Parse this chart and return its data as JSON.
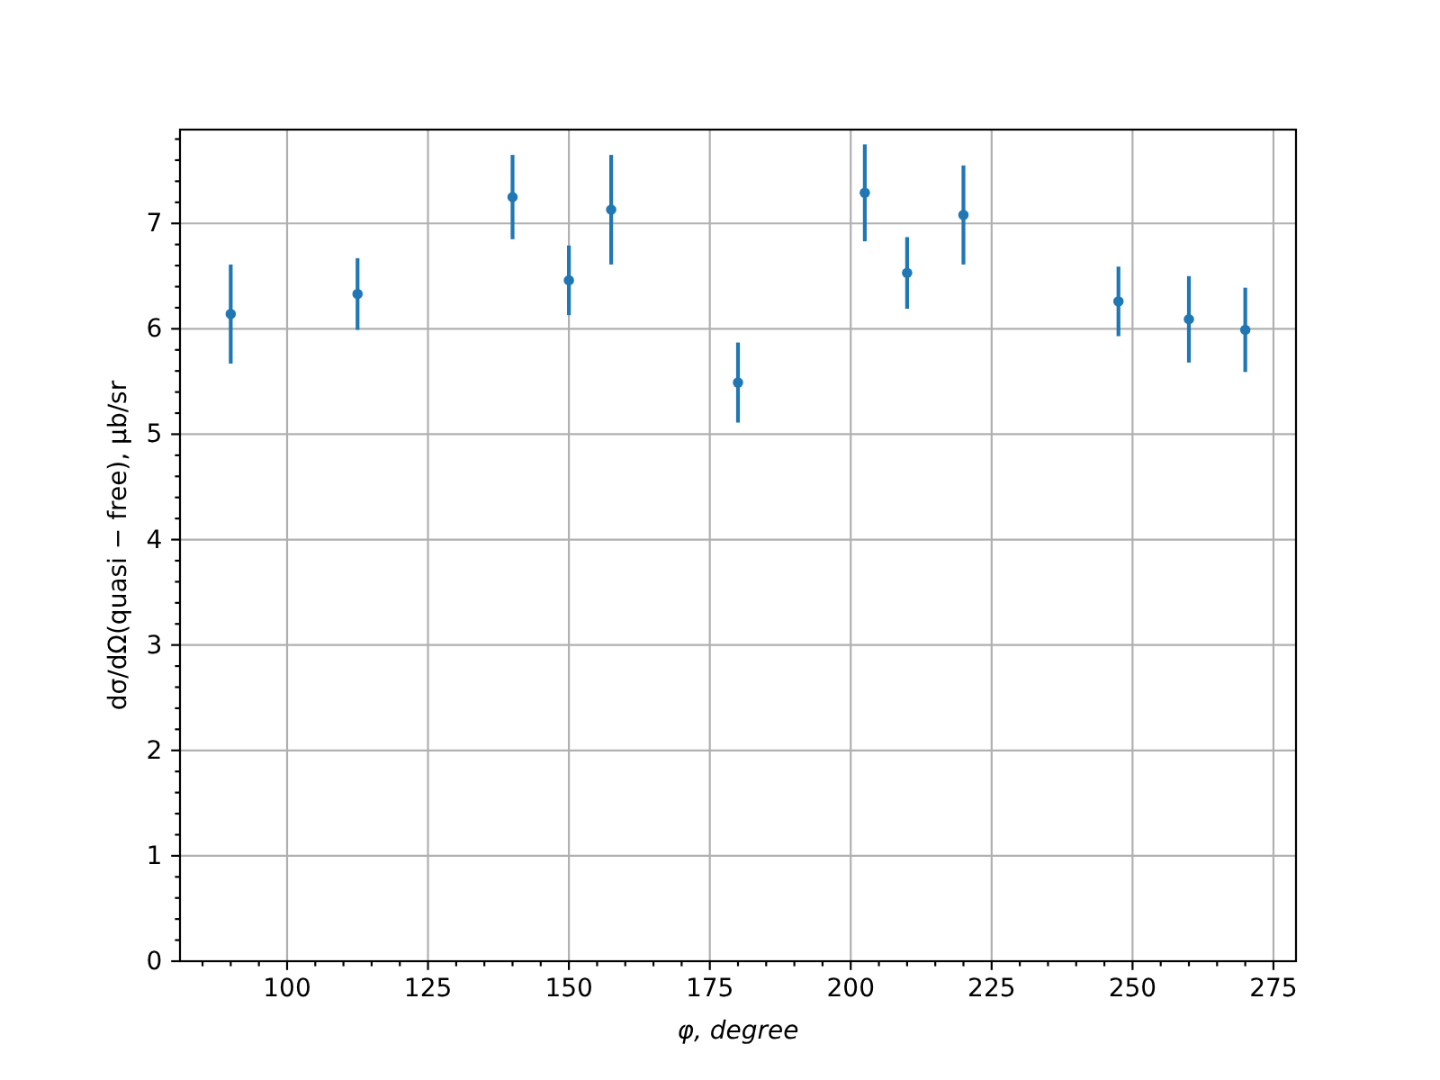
{
  "chart_data": {
    "type": "scatter",
    "xlabel": "φ, degree",
    "ylabel": "dσ/dΩ(quasi − free), μb/sr",
    "x": [
      90,
      112.5,
      140,
      150,
      157.5,
      180,
      202.5,
      210,
      220,
      247.5,
      260,
      270
    ],
    "values": [
      6.14,
      6.33,
      7.25,
      6.46,
      7.13,
      5.49,
      7.29,
      6.53,
      7.08,
      6.26,
      6.09,
      5.99
    ],
    "errors": [
      0.47,
      0.34,
      0.4,
      0.33,
      0.52,
      0.38,
      0.46,
      0.34,
      0.47,
      0.33,
      0.41,
      0.4
    ],
    "color": "#1f77b4",
    "marker": "circle",
    "grid": true,
    "xlim": [
      81,
      279
    ],
    "ylim": [
      0,
      7.89
    ],
    "xticks": [
      {
        "value": 85,
        "label": null
      },
      {
        "value": 90,
        "label": null
      },
      {
        "value": 95,
        "label": null
      },
      100,
      {
        "value": 105,
        "label": null
      },
      {
        "value": 110,
        "label": null
      },
      {
        "value": 115,
        "label": null
      },
      {
        "value": 120,
        "label": null
      },
      125,
      {
        "value": 130,
        "label": null
      },
      {
        "value": 135,
        "label": null
      },
      {
        "value": 140,
        "label": null
      },
      {
        "value": 145,
        "label": null
      },
      150,
      {
        "value": 155,
        "label": null
      },
      {
        "value": 160,
        "label": null
      },
      {
        "value": 165,
        "label": null
      },
      {
        "value": 170,
        "label": null
      },
      175,
      {
        "value": 180,
        "label": null
      },
      {
        "value": 185,
        "label": null
      },
      {
        "value": 190,
        "label": null
      },
      {
        "value": 195,
        "label": null
      },
      200,
      {
        "value": 205,
        "label": null
      },
      {
        "value": 210,
        "label": null
      },
      {
        "value": 215,
        "label": null
      },
      {
        "value": 220,
        "label": null
      },
      225,
      {
        "value": 230,
        "label": null
      },
      {
        "value": 235,
        "label": null
      },
      {
        "value": 240,
        "label": null
      },
      {
        "value": 245,
        "label": null
      },
      250,
      {
        "value": 255,
        "label": null
      },
      {
        "value": 260,
        "label": null
      },
      {
        "value": 265,
        "label": null
      },
      {
        "value": 270,
        "label": null
      },
      275
    ],
    "yticks": [
      0,
      {
        "value": 0.2,
        "label": null
      },
      {
        "value": 0.4,
        "label": null
      },
      {
        "value": 0.6,
        "label": null
      },
      {
        "value": 0.8,
        "label": null
      },
      1,
      {
        "value": 1.2,
        "label": null
      },
      {
        "value": 1.4,
        "label": null
      },
      {
        "value": 1.6,
        "label": null
      },
      {
        "value": 1.8,
        "label": null
      },
      2,
      {
        "value": 2.2,
        "label": null
      },
      {
        "value": 2.4,
        "label": null
      },
      {
        "value": 2.6,
        "label": null
      },
      {
        "value": 2.8,
        "label": null
      },
      3,
      {
        "value": 3.2,
        "label": null
      },
      {
        "value": 3.4,
        "label": null
      },
      {
        "value": 3.6,
        "label": null
      },
      {
        "value": 3.8,
        "label": null
      },
      4,
      {
        "value": 4.2,
        "label": null
      },
      {
        "value": 4.4,
        "label": null
      },
      {
        "value": 4.6,
        "label": null
      },
      {
        "value": 4.8,
        "label": null
      },
      5,
      {
        "value": 5.2,
        "label": null
      },
      {
        "value": 5.4,
        "label": null
      },
      {
        "value": 5.6,
        "label": null
      },
      {
        "value": 5.8,
        "label": null
      },
      6,
      {
        "value": 6.2,
        "label": null
      },
      {
        "value": 6.4,
        "label": null
      },
      {
        "value": 6.6,
        "label": null
      },
      {
        "value": 6.8,
        "label": null
      },
      7,
      {
        "value": 7.2,
        "label": null
      },
      {
        "value": 7.4,
        "label": null
      },
      {
        "value": 7.6,
        "label": null
      },
      {
        "value": 7.8,
        "label": null
      }
    ]
  }
}
